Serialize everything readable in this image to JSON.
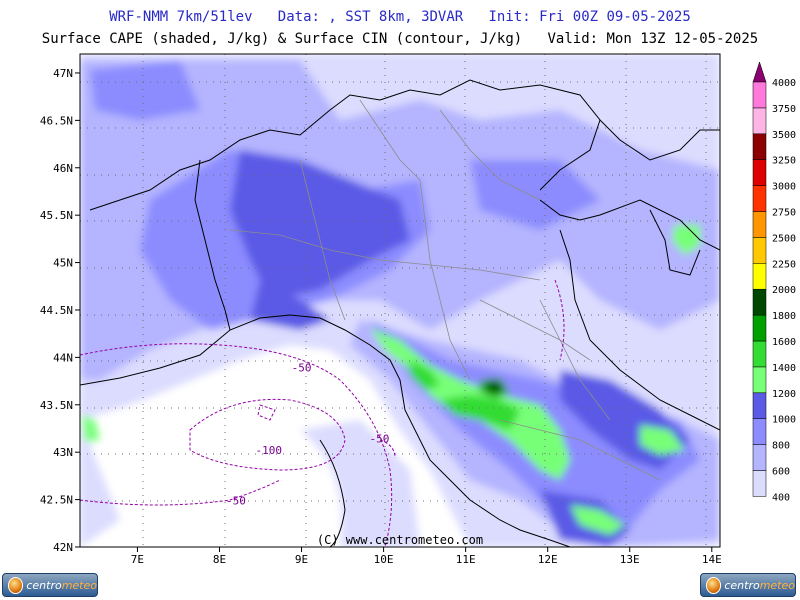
{
  "header": {
    "line1": "WRF-NMM 7km/51lev   Data: , SST 8km, 3DVAR   Init: Fri 00Z 09-05-2025",
    "line2": "Surface CAPE (shaded, J/kg) & Surface CIN (contour, J/kg)   Valid: Mon 13Z 12-05-2025"
  },
  "map": {
    "lon_range": [
      6.3,
      14.1
    ],
    "lat_range": [
      42.0,
      47.2
    ],
    "lon_ticks": [
      "7E",
      "8E",
      "9E",
      "10E",
      "11E",
      "12E",
      "13E",
      "14E"
    ],
    "lon_tick_values": [
      7,
      8,
      9,
      10,
      11,
      12,
      13,
      14
    ],
    "lat_ticks": [
      "42N",
      "42.5N",
      "43N",
      "43.5N",
      "44N",
      "44.5N",
      "45N",
      "45.5N",
      "46N",
      "46.5N",
      "47N"
    ],
    "lat_tick_values": [
      42,
      42.5,
      43,
      43.5,
      44,
      44.5,
      45,
      45.5,
      46,
      46.5,
      47
    ],
    "cin_labels": [
      {
        "text": "-50",
        "lon": 9.0,
        "lat": 43.85
      },
      {
        "text": "-50",
        "lon": 8.2,
        "lat": 42.45
      },
      {
        "text": "-100",
        "lon": 8.6,
        "lat": 42.98
      },
      {
        "text": "-50",
        "lon": 9.95,
        "lat": 43.1
      }
    ],
    "copyright": "(C) www.centrometeo.com",
    "background_color": "#ffffff",
    "grid": "dotted"
  },
  "colorbar": {
    "levels": [
      "400",
      "600",
      "800",
      "1000",
      "1200",
      "1400",
      "1600",
      "1800",
      "2000",
      "2250",
      "2500",
      "2750",
      "3000",
      "3250",
      "3500",
      "3750",
      "4000"
    ],
    "colors": [
      "#dcdcff",
      "#b4b4ff",
      "#8c8cff",
      "#5a5ae6",
      "#78ff78",
      "#32dc32",
      "#00a000",
      "#004800",
      "#ffff00",
      "#ffc800",
      "#ff9600",
      "#ff3200",
      "#dc0000",
      "#8b0000",
      "#ffb4e6",
      "#ff78dc",
      "#e646c8",
      "#8b0070"
    ]
  },
  "logos": {
    "left": {
      "text_a": "centro",
      "text_b": "meteo"
    },
    "right": {
      "text_a": "centro",
      "text_b": "meteo"
    }
  }
}
